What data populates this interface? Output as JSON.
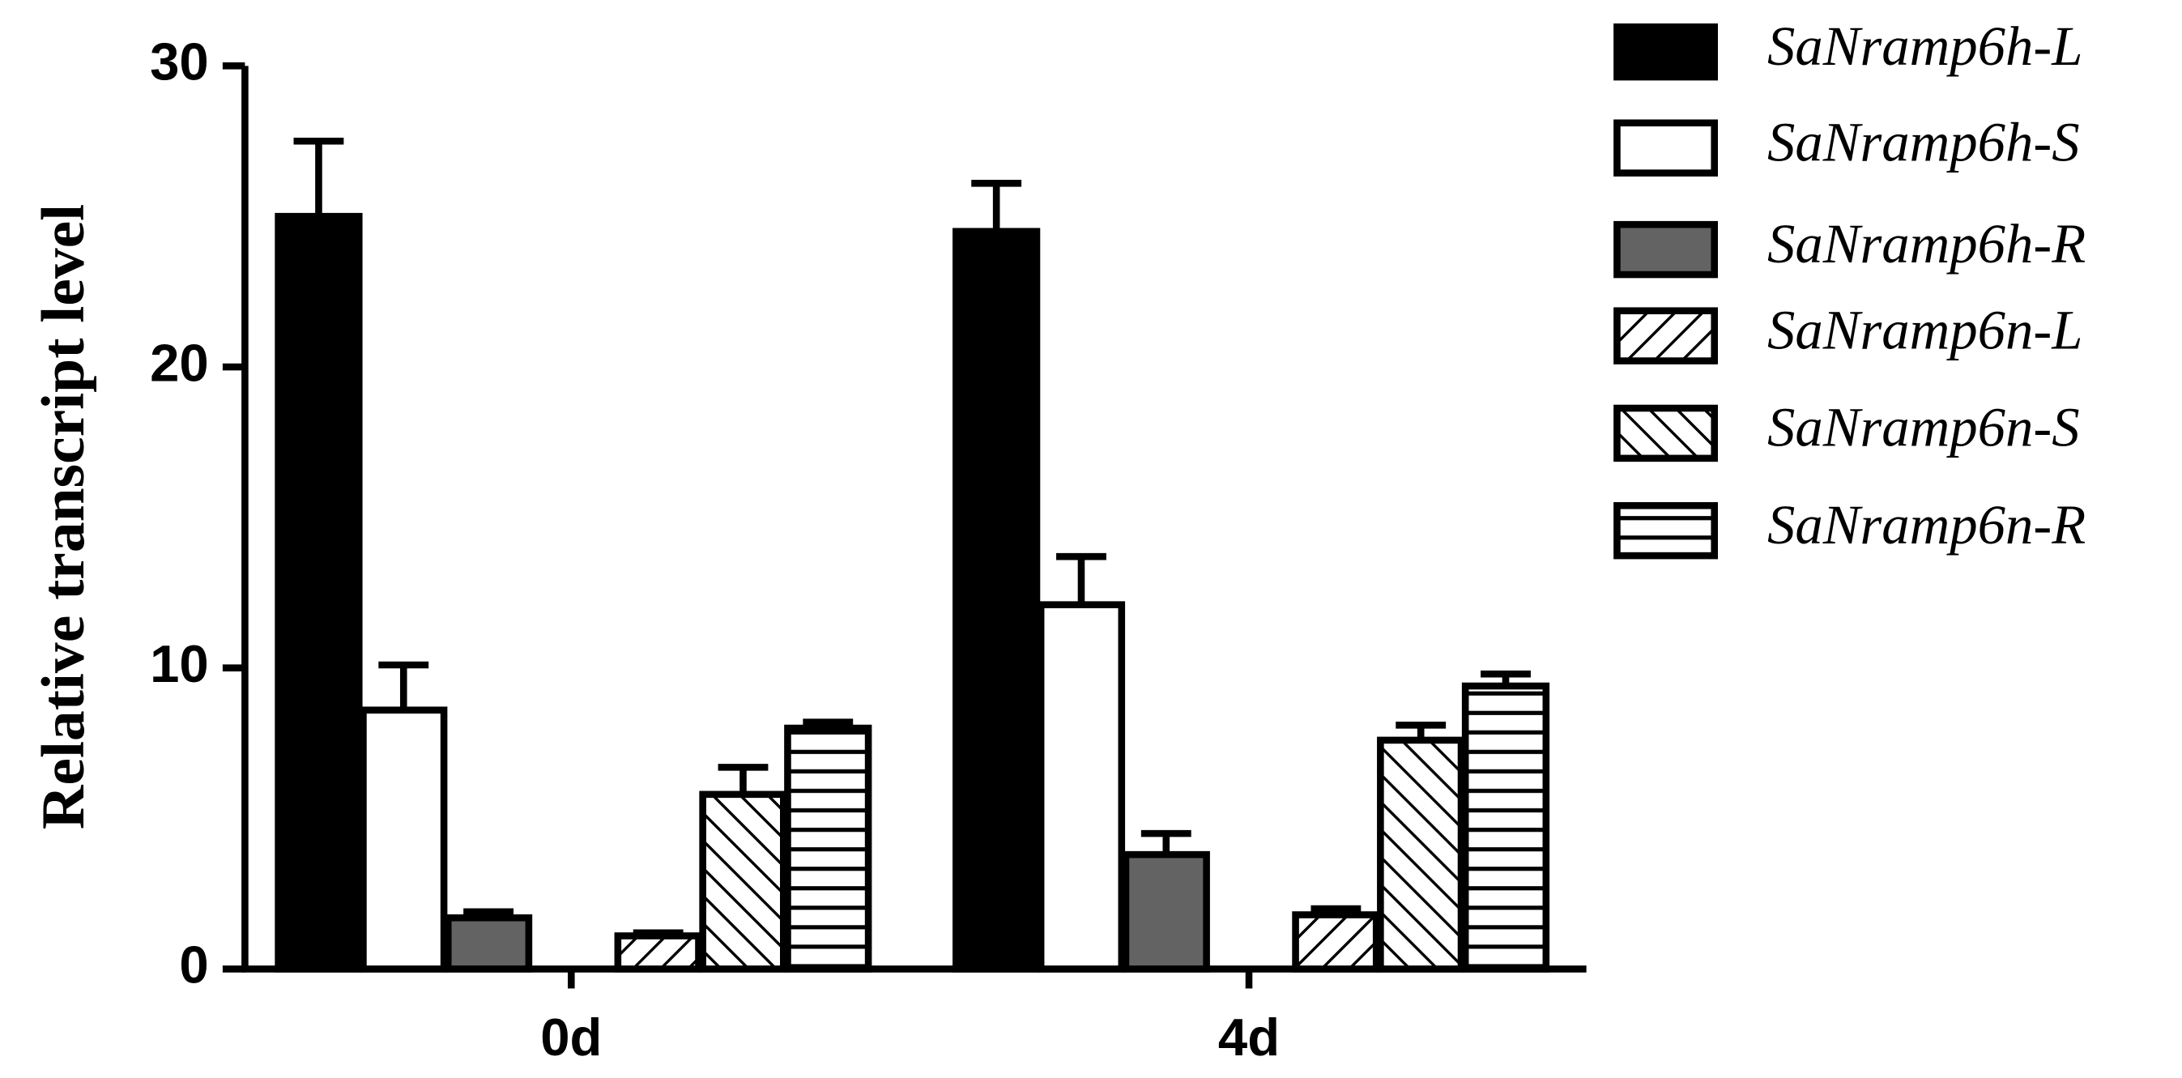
{
  "chart_data": {
    "type": "bar",
    "y_label": "Relative transcript level",
    "categories": [
      "0d",
      "4d"
    ],
    "series": [
      {
        "name": "SaNramp6h-L",
        "color": "#000000",
        "values": [
          25.0,
          24.5
        ],
        "errors": [
          2.5,
          1.6
        ]
      },
      {
        "name": "SaNramp6h-S",
        "color": "#ffffff",
        "values": [
          8.6,
          12.1
        ],
        "errors": [
          1.5,
          1.6
        ]
      },
      {
        "name": "SaNramp6h-R",
        "color": "#636363",
        "values": [
          1.7,
          3.8
        ],
        "errors": [
          0.2,
          0.7
        ]
      },
      {
        "name": "SaNramp6n-L",
        "color": "#ffffff",
        "pattern": "up",
        "values": [
          1.1,
          1.8
        ],
        "errors": [
          0.1,
          0.2
        ]
      },
      {
        "name": "SaNramp6n-S",
        "color": "#ffffff",
        "pattern": "down",
        "values": [
          5.8,
          7.6
        ],
        "errors": [
          0.9,
          0.5
        ]
      },
      {
        "name": "SaNramp6n-R",
        "color": "#ffffff",
        "pattern": "horizontal",
        "values": [
          8.0,
          9.4
        ],
        "errors": [
          0.2,
          0.4
        ]
      }
    ],
    "ylim": [
      0,
      30
    ],
    "yticks": [
      0,
      10,
      20,
      30
    ]
  }
}
